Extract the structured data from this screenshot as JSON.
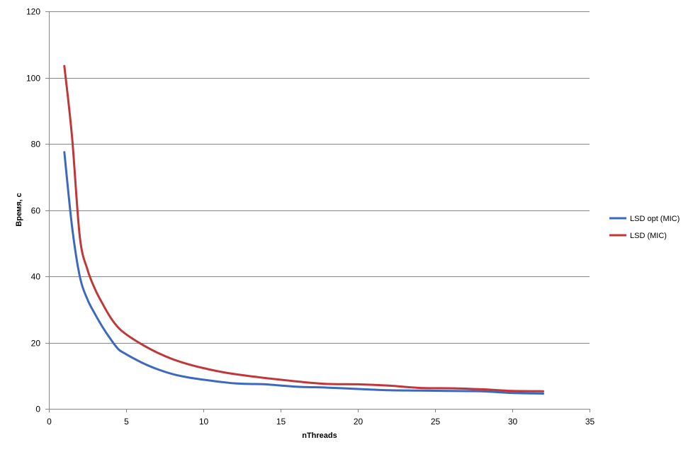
{
  "chart_data": {
    "type": "line",
    "title": "",
    "xlabel": "nThreads",
    "ylabel": "Время, с",
    "xlim": [
      0,
      35
    ],
    "ylim": [
      0,
      120
    ],
    "xticks": [
      0,
      5,
      10,
      15,
      20,
      25,
      30,
      35
    ],
    "yticks": [
      0,
      20,
      40,
      60,
      80,
      100,
      120
    ],
    "grid": "horizontal",
    "legend_position": "right",
    "series": [
      {
        "name": "LSD opt (MIC)",
        "color": "#3c69c0",
        "points": [
          [
            1,
            77.5
          ],
          [
            1.5,
            55
          ],
          [
            2,
            40
          ],
          [
            2.5,
            33
          ],
          [
            3,
            28.5
          ],
          [
            3.5,
            24.5
          ],
          [
            4,
            21
          ],
          [
            4.5,
            18
          ],
          [
            5,
            16.5
          ],
          [
            6,
            14
          ],
          [
            7,
            12
          ],
          [
            8,
            10.5
          ],
          [
            9,
            9.5
          ],
          [
            10,
            8.8
          ],
          [
            11,
            8.2
          ],
          [
            12,
            7.7
          ],
          [
            13,
            7.5
          ],
          [
            14,
            7.4
          ],
          [
            16,
            6.7
          ],
          [
            18,
            6.4
          ],
          [
            20,
            6
          ],
          [
            22,
            5.6
          ],
          [
            24,
            5.5
          ],
          [
            26,
            5.4
          ],
          [
            28,
            5.3
          ],
          [
            30,
            4.8
          ],
          [
            32,
            4.6
          ]
        ]
      },
      {
        "name": "LSD (MIC)",
        "color": "#c0373a",
        "points": [
          [
            1,
            103.5
          ],
          [
            1.5,
            82
          ],
          [
            2,
            52
          ],
          [
            2.5,
            42
          ],
          [
            3,
            36
          ],
          [
            3.5,
            31.5
          ],
          [
            4,
            27.5
          ],
          [
            4.5,
            24.5
          ],
          [
            5,
            22.5
          ],
          [
            6,
            19.5
          ],
          [
            7,
            17
          ],
          [
            8,
            15
          ],
          [
            9,
            13.5
          ],
          [
            10,
            12.3
          ],
          [
            11,
            11.3
          ],
          [
            12,
            10.5
          ],
          [
            14,
            9.3
          ],
          [
            16,
            8.3
          ],
          [
            18,
            7.5
          ],
          [
            20,
            7.4
          ],
          [
            22,
            7
          ],
          [
            24,
            6.3
          ],
          [
            26,
            6.2
          ],
          [
            28,
            5.9
          ],
          [
            30,
            5.4
          ],
          [
            32,
            5.3
          ]
        ]
      }
    ]
  }
}
